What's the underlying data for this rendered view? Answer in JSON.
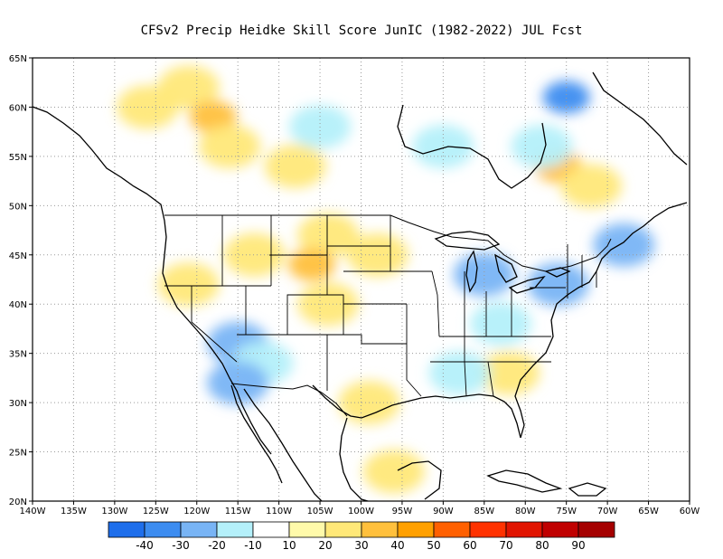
{
  "chart_data": {
    "type": "heatmap",
    "title": "CFSv2 Precip Heidke Skill Score JunIC (1982-2022) JUL Fcst",
    "x_ticks": [
      "140W",
      "135W",
      "130W",
      "125W",
      "120W",
      "115W",
      "110W",
      "105W",
      "100W",
      "95W",
      "90W",
      "85W",
      "80W",
      "75W",
      "70W",
      "65W",
      "60W"
    ],
    "y_ticks": [
      "65N",
      "60N",
      "55N",
      "50N",
      "45N",
      "40N",
      "35N",
      "30N",
      "25N",
      "20N"
    ],
    "lon_range": [
      -140,
      -60
    ],
    "lat_range": [
      20,
      65
    ],
    "grid": "dotted",
    "colorbar": {
      "labels": [
        "-40",
        "-30",
        "-20",
        "-10",
        "10",
        "20",
        "30",
        "40",
        "50",
        "60",
        "70",
        "80",
        "90"
      ],
      "colors": [
        "#1e6eeb",
        "#3c8cf0",
        "#78b4f5",
        "#b4f0fa",
        "#ffffff",
        "#fffaaa",
        "#ffe878",
        "#ffc03c",
        "#ffa000",
        "#ff6000",
        "#ff3200",
        "#e11400",
        "#c00000",
        "#a50000"
      ]
    },
    "skill_regions": [
      {
        "lon": -121,
        "lat": 62,
        "value": 20
      },
      {
        "lon": -118,
        "lat": 59,
        "value": 30
      },
      {
        "lon": -126,
        "lat": 60,
        "value": 20
      },
      {
        "lon": -116,
        "lat": 56,
        "value": 20
      },
      {
        "lon": -108,
        "lat": 54,
        "value": 20
      },
      {
        "lon": -104,
        "lat": 47,
        "value": 20
      },
      {
        "lon": -113,
        "lat": 45,
        "value": 20
      },
      {
        "lon": -106,
        "lat": 44,
        "value": 30
      },
      {
        "lon": -98,
        "lat": 45,
        "value": 20
      },
      {
        "lon": -121,
        "lat": 42,
        "value": 20
      },
      {
        "lon": -104,
        "lat": 40,
        "value": 20
      },
      {
        "lon": -99,
        "lat": 30,
        "value": 20
      },
      {
        "lon": -96,
        "lat": 23,
        "value": 20
      },
      {
        "lon": -76,
        "lat": 54,
        "value": 30
      },
      {
        "lon": -72,
        "lat": 52,
        "value": 20
      },
      {
        "lon": -82,
        "lat": 33,
        "value": 20
      },
      {
        "lon": -115,
        "lat": 36,
        "value": -20
      },
      {
        "lon": -112,
        "lat": 34,
        "value": -10
      },
      {
        "lon": -115,
        "lat": 32,
        "value": -20
      },
      {
        "lon": -85,
        "lat": 43,
        "value": -20
      },
      {
        "lon": -76,
        "lat": 42,
        "value": -20
      },
      {
        "lon": -83,
        "lat": 38,
        "value": -10
      },
      {
        "lon": -88,
        "lat": 33,
        "value": -10
      },
      {
        "lon": -75,
        "lat": 61,
        "value": -30
      },
      {
        "lon": -78,
        "lat": 56,
        "value": -10
      },
      {
        "lon": -90,
        "lat": 56,
        "value": -10
      },
      {
        "lon": -105,
        "lat": 58,
        "value": -10
      },
      {
        "lon": -68,
        "lat": 46,
        "value": -20
      }
    ]
  }
}
